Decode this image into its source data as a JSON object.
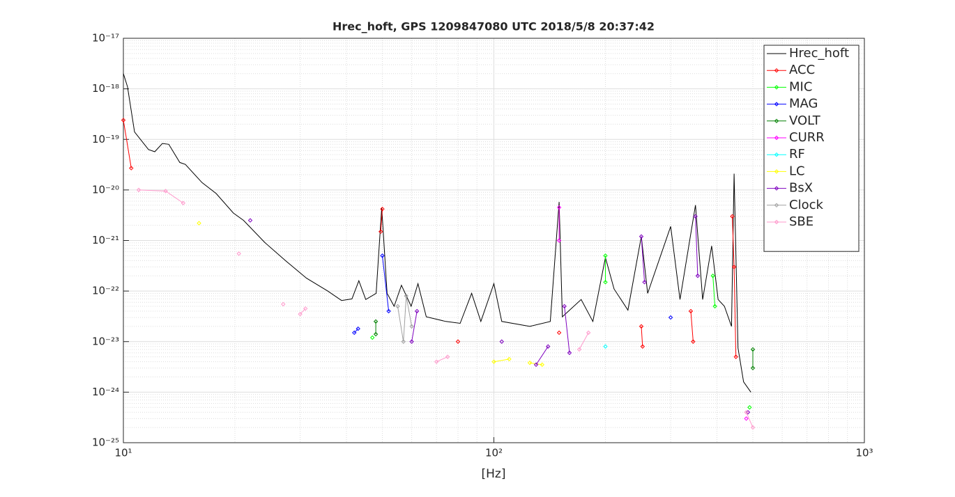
{
  "chart_data": {
    "type": "line",
    "title": "Hrec_hoft, GPS 1209847080 UTC 2018/5/8 20:37:42",
    "x_label": "[Hz]",
    "log_x": true,
    "log_y": true,
    "grid": true,
    "minor_grid": true,
    "legend_position": "upper right",
    "xlim": [
      10,
      1000
    ],
    "ylim": [
      1e-25,
      1e-17
    ],
    "xticks": [
      {
        "value": 10,
        "label": "10¹"
      },
      {
        "value": 100,
        "label": "10²"
      },
      {
        "value": 1000,
        "label": "10³"
      }
    ],
    "yticks": [
      {
        "value": 1e-25,
        "label": "10⁻²⁵"
      },
      {
        "value": 1e-24,
        "label": "10⁻²⁴"
      },
      {
        "value": 1e-23,
        "label": "10⁻²³"
      },
      {
        "value": 1e-22,
        "label": "10⁻²²"
      },
      {
        "value": 1e-21,
        "label": "10⁻²¹"
      },
      {
        "value": 1e-20,
        "label": "10⁻²⁰"
      },
      {
        "value": 1e-19,
        "label": "10⁻¹⁹"
      },
      {
        "value": 1e-18,
        "label": "10⁻¹⁸"
      },
      {
        "value": 1e-17,
        "label": "10⁻¹⁷"
      }
    ],
    "series": [
      {
        "name": "Hrec_hoft",
        "color": "#000000",
        "markers": false,
        "x": [
          10,
          10.26,
          10.72,
          11.69,
          12.15,
          12.74,
          13.26,
          14.2,
          14.7,
          16.3,
          17.8,
          19.8,
          21.1,
          24.1,
          27.5,
          31.2,
          35.6,
          38.8,
          41.4,
          43.2,
          45.1,
          48.1,
          49.8,
          51.5,
          53.8,
          56.3,
          59.8,
          62.4,
          65.7,
          74.2,
          81.1,
          87.1,
          92.2,
          100,
          105,
          125,
          142,
          150,
          153,
          172,
          185,
          200,
          211,
          230,
          250,
          260,
          300,
          318,
          350,
          366,
          387,
          403,
          419,
          438,
          445,
          456,
          472,
          494
        ],
        "values": [
          2e-18,
          1.1e-18,
          1.4e-19,
          6.3e-20,
          5.7e-20,
          8.3e-20,
          8e-20,
          3.5e-20,
          3.2e-20,
          1.4e-20,
          8.5e-21,
          3.5e-21,
          2.5e-21,
          9.1e-22,
          3.9e-22,
          1.8e-22,
          1e-22,
          6.5e-23,
          7e-23,
          1.6e-22,
          6.8e-23,
          9e-23,
          4.5e-21,
          9e-23,
          5e-23,
          1.3e-22,
          5e-23,
          1.4e-22,
          3.1e-23,
          2.5e-23,
          2.3e-23,
          9e-23,
          2.5e-23,
          1.4e-22,
          2.5e-23,
          2e-23,
          2.5e-23,
          5.8e-21,
          3.1e-23,
          6.8e-23,
          2.5e-23,
          4.6e-22,
          1.1e-22,
          4.2e-23,
          1.2e-21,
          9e-23,
          1.9e-21,
          6.8e-23,
          5e-21,
          6.8e-23,
          7.8e-22,
          6.8e-23,
          5e-23,
          2e-23,
          2.1e-20,
          7.5e-24,
          1.6e-24,
          1e-24
        ]
      },
      {
        "name": "ACC",
        "color": "#ff0000",
        "markers": true,
        "x": [
          10,
          10.5,
          null,
          49.5,
          50,
          null,
          80,
          null,
          150,
          null,
          250,
          252,
          null,
          340,
          345,
          null,
          440,
          445,
          450
        ],
        "values": [
          2.4e-19,
          2.7e-20,
          null,
          1.5e-21,
          4.2e-21,
          null,
          1e-23,
          null,
          1.5e-23,
          null,
          2e-23,
          8e-24,
          null,
          4e-23,
          1e-23,
          null,
          3e-21,
          3e-22,
          5e-24
        ]
      },
      {
        "name": "MIC",
        "color": "#00ff00",
        "markers": true,
        "x": [
          47,
          null,
          200,
          200,
          null,
          390,
          395,
          null,
          490
        ],
        "values": [
          1.2e-23,
          null,
          5e-22,
          1.5e-22,
          null,
          2e-22,
          5e-23,
          null,
          5e-25
        ]
      },
      {
        "name": "MAG",
        "color": "#0000ff",
        "markers": true,
        "x": [
          42,
          43,
          null,
          50,
          52,
          null,
          300
        ],
        "values": [
          1.5e-23,
          1.8e-23,
          null,
          5e-22,
          4e-23,
          null,
          3e-23
        ]
      },
      {
        "name": "VOLT",
        "color": "#008000",
        "markers": true,
        "x": [
          48,
          48,
          null,
          500,
          500
        ],
        "values": [
          2.5e-23,
          1.4e-23,
          null,
          7e-24,
          3e-24
        ]
      },
      {
        "name": "CURR",
        "color": "#ff00ff",
        "markers": true,
        "x": [
          150,
          150,
          null,
          480
        ],
        "values": [
          4.5e-21,
          1e-21,
          null,
          3e-25
        ]
      },
      {
        "name": "RF",
        "color": "#00ffff",
        "markers": true,
        "x": [
          200
        ],
        "values": [
          8e-24
        ]
      },
      {
        "name": "LC",
        "color": "#ffff00",
        "markers": true,
        "x": [
          16,
          null,
          100,
          110,
          null,
          125,
          135
        ],
        "values": [
          2.2e-21,
          null,
          4e-24,
          4.5e-24,
          null,
          3.8e-24,
          3.5e-24
        ]
      },
      {
        "name": "BsX",
        "color": "#7e00bf",
        "markers": true,
        "x": [
          22,
          null,
          60,
          62,
          null,
          105,
          null,
          130,
          140,
          null,
          155,
          160,
          null,
          250,
          255,
          null,
          350,
          355,
          null,
          485
        ],
        "values": [
          2.5e-21,
          null,
          1e-23,
          4e-23,
          null,
          1e-23,
          null,
          3.5e-24,
          8e-24,
          null,
          5e-23,
          6e-24,
          null,
          1.2e-21,
          1.5e-22,
          null,
          3e-21,
          2e-22,
          null,
          4e-25
        ]
      },
      {
        "name": "Clock",
        "color": "#a0a0a0",
        "markers": true,
        "x": [
          55,
          57,
          58,
          60
        ],
        "values": [
          5e-23,
          1e-23,
          8e-23,
          2e-23
        ]
      },
      {
        "name": "SBE",
        "color": "#ff99cc",
        "markers": true,
        "x": [
          11,
          13,
          14.5,
          null,
          20.5,
          null,
          27,
          null,
          30,
          31,
          null,
          70,
          75,
          null,
          170,
          180,
          null,
          480,
          500
        ],
        "values": [
          1e-20,
          9.5e-21,
          5.5e-21,
          null,
          5.5e-22,
          null,
          5.5e-23,
          null,
          3.5e-23,
          4.5e-23,
          null,
          4e-24,
          5e-24,
          null,
          7e-24,
          1.5e-23,
          null,
          4e-25,
          2e-25
        ]
      }
    ]
  }
}
